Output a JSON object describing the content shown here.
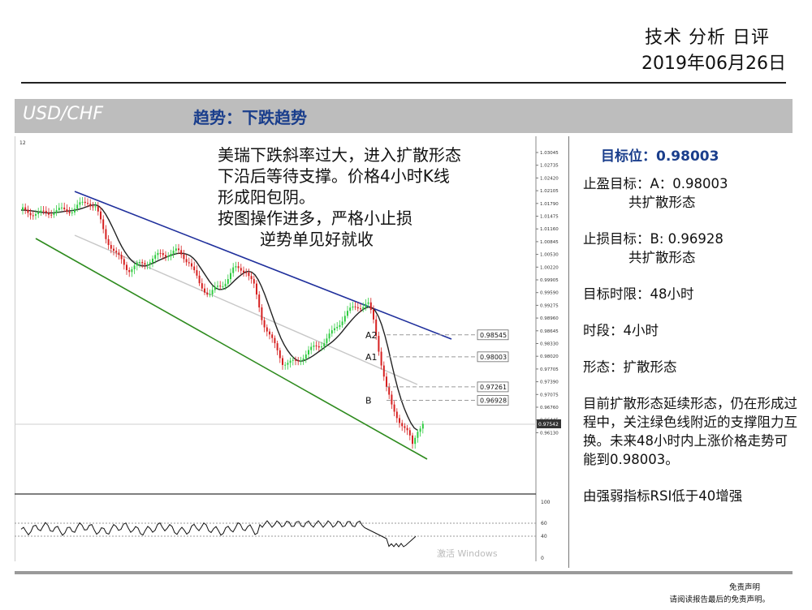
{
  "header": {
    "title": "技术 分析 日评",
    "date": "2019年06月26日"
  },
  "band": {
    "pair": "USD/CHF",
    "trend": "趋势：下跌趋势"
  },
  "note": {
    "lines": [
      "美瑞下跌斜率过大，进入扩散形态",
      "下沿后等待支撑。价格4小时K线",
      "形成阳包阴。",
      "按图操作进多，严格小止损",
      "逆势单见好就收"
    ]
  },
  "chart": {
    "corner_label": "12",
    "price_axis": [
      "1.03045",
      "1.02735",
      "1.02420",
      "1.02105",
      "1.01790",
      "1.01475",
      "1.01160",
      "1.00845",
      "1.00530",
      "1.00220",
      "0.99905",
      "0.99590",
      "0.99275",
      "0.98960",
      "0.98645",
      "0.98330",
      "0.98020",
      "0.97705",
      "0.97390",
      "0.97075",
      "0.96760",
      "0.96445",
      "0.96130"
    ],
    "current_price": "0.97542",
    "levels": [
      {
        "label": "A2",
        "value": "0.98545"
      },
      {
        "label": "A1",
        "value": "0.98003"
      },
      {
        "label": "",
        "value": "0.97261"
      },
      {
        "label": "B",
        "value": "0.96928"
      }
    ],
    "rsi_axis": [
      "100",
      "60",
      "40",
      "0"
    ],
    "watermark": "激活 Windows",
    "colors": {
      "bull": "#2ecc40",
      "bear": "#d62020",
      "upper_channel": "#1f2f9c",
      "lower_channel": "#2e8b1e",
      "mid_channel": "#c8c8c8",
      "ma": "#222222"
    }
  },
  "panel": {
    "target": "目标位：0.98003",
    "tp_line1": "止盈目标：A：0.98003",
    "tp_line2": "共扩散形态",
    "sl_line1": "止损目标：B: 0.96928",
    "sl_line2": "共扩散形态",
    "time_limit": "目标时限：48小时",
    "period": "时段：4小时",
    "pattern": "形态：扩散形态",
    "description": "目前扩散形态延续形态，仍在形成过程中，关注绿色线附近的支撑阻力互换。未来48小时内上涨价格走势可能到0.98003。",
    "rsi_note": "由强弱指标RSI低于40增强"
  },
  "footer": {
    "disclaimer_title": "免责声明",
    "disclaimer_text": "请阅读报告最后的免责声明。"
  }
}
